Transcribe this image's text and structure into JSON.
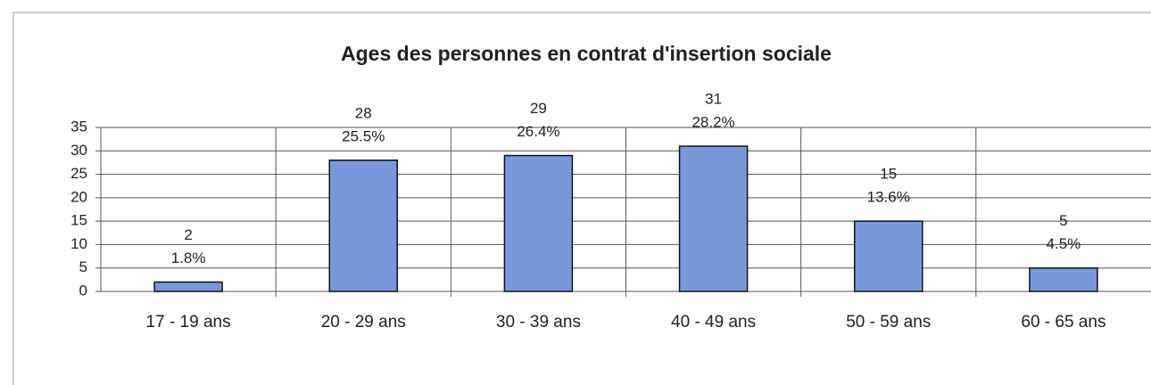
{
  "chart_data": {
    "type": "bar",
    "title": "Ages des personnes en contrat d'insertion sociale",
    "categories": [
      "17 - 19 ans",
      "20 - 29 ans",
      "30 - 39 ans",
      "40 - 49 ans",
      "50 - 59 ans",
      "60 - 65 ans"
    ],
    "values": [
      2,
      28,
      29,
      31,
      15,
      5
    ],
    "percentage_labels": [
      "1.8%",
      "25.5%",
      "26.4%",
      "28.2%",
      "13.6%",
      "4.5%"
    ],
    "color": "#7b97dc",
    "ylim": [
      0,
      35
    ],
    "yticks": [
      0,
      5,
      10,
      15,
      20,
      25,
      30,
      35
    ],
    "grid": true
  }
}
